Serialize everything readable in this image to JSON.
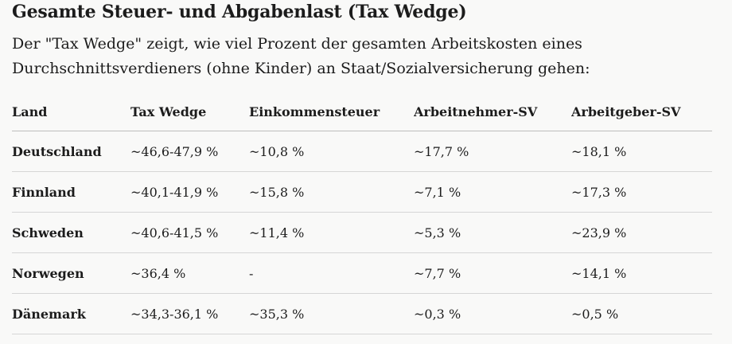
{
  "section": {
    "title": "Gesamte Steuer- und Abgabenlast (Tax Wedge)",
    "intro_line1": "Der \"Tax Wedge\" zeigt, wie viel Prozent der gesamten Arbeitskosten eines",
    "intro_line2": "Durchschnittsverdieners (ohne Kinder) an Staat/Sozialversicherung gehen:"
  },
  "table": {
    "headers": [
      "Land",
      "Tax Wedge",
      "Einkommensteuer",
      "Arbeitnehmer-SV",
      "Arbeitgeber-SV"
    ],
    "rows": [
      [
        "Deutschland",
        "~46,6-47,9 %",
        "~10,8 %",
        "~17,7 %",
        "~18,1 %"
      ],
      [
        "Finnland",
        "~40,1-41,9 %",
        "~15,8 %",
        "~7,1 %",
        "~17,3 %"
      ],
      [
        "Schweden",
        "~40,6-41,5 %",
        "~11,4 %",
        "~5,3 %",
        "~23,9 %"
      ],
      [
        "Norwegen",
        "~36,4 %",
        "-",
        "~7,7 %",
        "~14,1 %"
      ],
      [
        "Dänemark",
        "~34,3-36,1 %",
        "~35,3 %",
        "~0,3 %",
        "~0,5 %"
      ]
    ]
  }
}
